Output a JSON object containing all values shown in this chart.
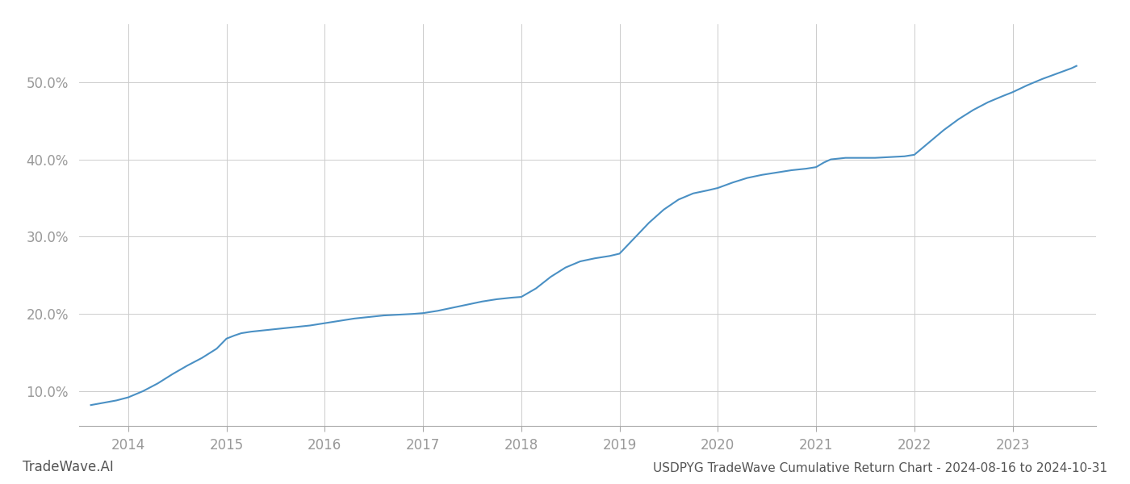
{
  "title": "USDPYG TradeWave Cumulative Return Chart - 2024-08-16 to 2024-10-31",
  "watermark": "TradeWave.AI",
  "line_color": "#4a90c4",
  "background_color": "#ffffff",
  "grid_color": "#cccccc",
  "x_tick_labels": [
    "2014",
    "2015",
    "2016",
    "2017",
    "2018",
    "2019",
    "2020",
    "2021",
    "2022",
    "2023"
  ],
  "x_tick_positions": [
    2014,
    2015,
    2016,
    2017,
    2018,
    2019,
    2020,
    2021,
    2022,
    2023
  ],
  "ylim": [
    0.055,
    0.575
  ],
  "y_ticks": [
    0.1,
    0.2,
    0.3,
    0.4,
    0.5
  ],
  "y_tick_labels": [
    "10.0%",
    "20.0%",
    "30.0%",
    "40.0%",
    "50.0%"
  ],
  "xlim": [
    2013.5,
    2023.85
  ],
  "data_x": [
    2013.62,
    2013.75,
    2013.88,
    2014.0,
    2014.15,
    2014.3,
    2014.45,
    2014.6,
    2014.75,
    2014.9,
    2015.0,
    2015.08,
    2015.15,
    2015.25,
    2015.4,
    2015.55,
    2015.7,
    2015.85,
    2016.0,
    2016.15,
    2016.3,
    2016.45,
    2016.6,
    2016.75,
    2016.9,
    2017.0,
    2017.15,
    2017.3,
    2017.45,
    2017.6,
    2017.75,
    2017.9,
    2018.0,
    2018.15,
    2018.3,
    2018.45,
    2018.6,
    2018.75,
    2018.9,
    2019.0,
    2019.15,
    2019.3,
    2019.45,
    2019.6,
    2019.75,
    2019.9,
    2020.0,
    2020.15,
    2020.3,
    2020.45,
    2020.6,
    2020.75,
    2020.9,
    2021.0,
    2021.08,
    2021.15,
    2021.3,
    2021.45,
    2021.6,
    2021.75,
    2021.9,
    2022.0,
    2022.15,
    2022.3,
    2022.45,
    2022.6,
    2022.75,
    2022.9,
    2023.0,
    2023.15,
    2023.3,
    2023.45,
    2023.6,
    2023.65
  ],
  "data_y": [
    0.082,
    0.085,
    0.088,
    0.092,
    0.1,
    0.11,
    0.122,
    0.133,
    0.143,
    0.155,
    0.168,
    0.172,
    0.175,
    0.177,
    0.179,
    0.181,
    0.183,
    0.185,
    0.188,
    0.191,
    0.194,
    0.196,
    0.198,
    0.199,
    0.2,
    0.201,
    0.204,
    0.208,
    0.212,
    0.216,
    0.219,
    0.221,
    0.222,
    0.233,
    0.248,
    0.26,
    0.268,
    0.272,
    0.275,
    0.278,
    0.298,
    0.318,
    0.335,
    0.348,
    0.356,
    0.36,
    0.363,
    0.37,
    0.376,
    0.38,
    0.383,
    0.386,
    0.388,
    0.39,
    0.396,
    0.4,
    0.402,
    0.402,
    0.402,
    0.403,
    0.404,
    0.406,
    0.422,
    0.438,
    0.452,
    0.464,
    0.474,
    0.482,
    0.487,
    0.496,
    0.504,
    0.511,
    0.518,
    0.521
  ],
  "title_color": "#555555",
  "title_fontsize": 11,
  "tick_label_color": "#999999",
  "tick_fontsize": 12,
  "watermark_fontsize": 12,
  "watermark_color": "#555555",
  "line_width": 1.5
}
